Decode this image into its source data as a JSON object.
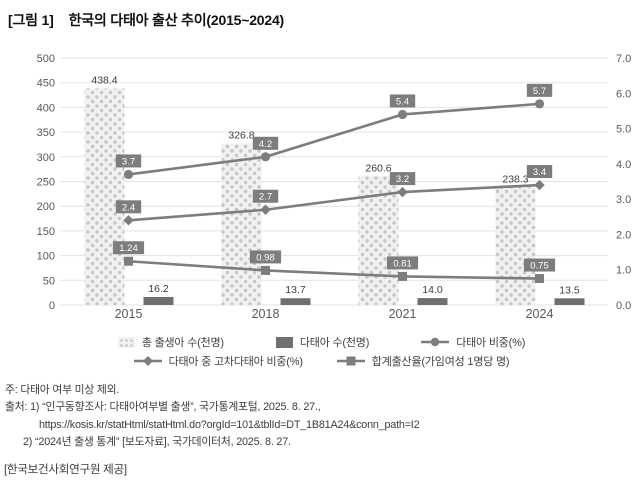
{
  "title": {
    "tag": "[그림 1]",
    "text": "한국의 다태아 출산 추이(2015~2024)"
  },
  "chart_data": {
    "type": "combo: clustered bar + line, dual axis",
    "categories": [
      "2015",
      "2018",
      "2021",
      "2024"
    ],
    "left_axis": {
      "min": 0,
      "max": 500,
      "step": 50,
      "tick_labels": [
        "0",
        "50",
        "100",
        "150",
        "200",
        "250",
        "300",
        "350",
        "400",
        "450",
        "500"
      ]
    },
    "right_axis": {
      "min": 0.0,
      "max": 7.0,
      "step": 1.0,
      "tick_labels": [
        "0.0",
        "1.0",
        "2.0",
        "3.0",
        "4.0",
        "5.0",
        "6.0",
        "7.0"
      ]
    },
    "grid": "horizontal gridlines at left-axis ticks",
    "bar_series": [
      {
        "name": "총 출생아 수(천명)",
        "axis": "left",
        "style": "dotted-pattern",
        "values": [
          438.4,
          326.8,
          260.6,
          238.3
        ],
        "labels": [
          "438.4",
          "326.8",
          "260.6",
          "238.3"
        ]
      },
      {
        "name": "다태아 수(천명)",
        "axis": "left",
        "style": "solid",
        "values": [
          16.2,
          13.7,
          14.0,
          13.5
        ],
        "labels": [
          "16.2",
          "13.7",
          "14.0",
          "13.5"
        ]
      }
    ],
    "line_series": [
      {
        "name": "다태아 비중(%)",
        "axis": "right",
        "marker": "circle",
        "values": [
          3.7,
          4.2,
          5.4,
          5.7
        ],
        "labels": [
          "3.7",
          "4.2",
          "5.4",
          "5.7"
        ]
      },
      {
        "name": "다태아 중 고차다태아 비중(%)",
        "axis": "right",
        "marker": "diamond",
        "values": [
          2.4,
          2.7,
          3.2,
          3.4
        ],
        "labels": [
          "2.4",
          "2.7",
          "3.2",
          "3.4"
        ]
      },
      {
        "name": "합계출산율(가임여성 1명당 명)",
        "axis": "right",
        "marker": "square",
        "values": [
          1.24,
          0.98,
          0.81,
          0.75
        ],
        "labels": [
          "1.24",
          "0.98",
          "0.81",
          "0.75"
        ]
      }
    ],
    "colors": {
      "line_gray": "#7d7d7d",
      "dark_bar": "#6f6f6f",
      "dotted_bar_bg": "#f1f1f0",
      "dotted_bar_dot": "#c6c6c4",
      "gridline": "#e3e3e3",
      "axis_text": "#595959",
      "value_text": "#3d3d3d",
      "callout_bg": "#7d7d7d",
      "callout_text": "#ffffff"
    },
    "legend_position": "bottom, two centered rows"
  },
  "legend": {
    "items": [
      {
        "label": "총 출생아 수(천명)"
      },
      {
        "label": "다태아 수(천명)"
      },
      {
        "label": "다태아 비중(%)"
      },
      {
        "label": "다태아 중 고차다태아 비중(%)"
      },
      {
        "label": "합계출산율(가임여성 1명당 명)"
      }
    ]
  },
  "notes": {
    "lines": [
      {
        "text": "주: 다태아 여부 미상 제외."
      },
      {
        "text": "출처: 1) “인구동향조사: 다태아여부별 출생”, 국가통계포털, 2025. 8. 27.,"
      },
      {
        "text": "https://kosis.kr/statHtml/statHtml.do?orgId=101&tblId=DT_1B81A24&conn_path=I2"
      },
      {
        "text": "2) “2024년 출생 통계” [보도자료], 국가데이터처, 2025. 8. 27."
      }
    ]
  },
  "provider": "[한국보건사회연구원 제공]"
}
